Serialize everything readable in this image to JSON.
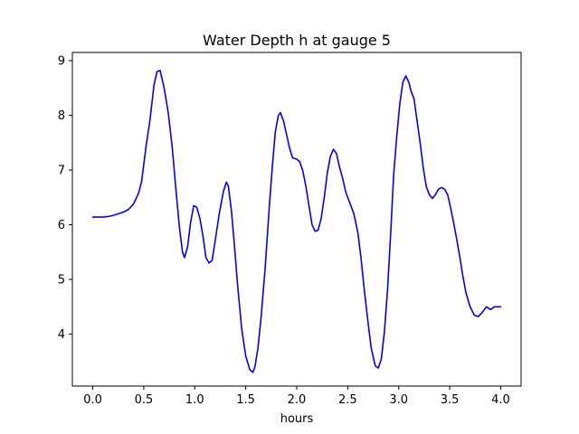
{
  "chart_data": {
    "type": "line",
    "title": "Water Depth h at gauge 5",
    "xlabel": "hours",
    "ylabel": "",
    "xlim": [
      -0.2,
      4.2
    ],
    "ylim": [
      3.05,
      9.15
    ],
    "xticks": [
      0.0,
      0.5,
      1.0,
      1.5,
      2.0,
      2.5,
      3.0,
      3.5,
      4.0
    ],
    "xtick_labels": [
      "0.0",
      "0.5",
      "1.0",
      "1.5",
      "2.0",
      "2.5",
      "3.0",
      "3.5",
      "4.0"
    ],
    "yticks": [
      4,
      5,
      6,
      7,
      8,
      9
    ],
    "ytick_labels": [
      "4",
      "5",
      "6",
      "7",
      "8",
      "9"
    ],
    "grid": false,
    "legend": "none",
    "series": [
      {
        "color": "#0000ff",
        "x": [
          0.0,
          0.1,
          0.15,
          0.2,
          0.25,
          0.3,
          0.35,
          0.4,
          0.45,
          0.48,
          0.52,
          0.56,
          0.6,
          0.63,
          0.66,
          0.7,
          0.74,
          0.78,
          0.82,
          0.85,
          0.88,
          0.9,
          0.93,
          0.96,
          0.99,
          1.02,
          1.05,
          1.08,
          1.11,
          1.14,
          1.17,
          1.2,
          1.24,
          1.28,
          1.31,
          1.33,
          1.36,
          1.39,
          1.42,
          1.46,
          1.5,
          1.54,
          1.57,
          1.59,
          1.62,
          1.65,
          1.69,
          1.73,
          1.76,
          1.79,
          1.82,
          1.84,
          1.87,
          1.9,
          1.93,
          1.96,
          2.0,
          2.03,
          2.06,
          2.09,
          2.12,
          2.15,
          2.18,
          2.21,
          2.24,
          2.27,
          2.3,
          2.33,
          2.36,
          2.39,
          2.42,
          2.45,
          2.48,
          2.52,
          2.56,
          2.6,
          2.63,
          2.66,
          2.7,
          2.73,
          2.77,
          2.8,
          2.83,
          2.86,
          2.89,
          2.92,
          2.95,
          2.98,
          3.01,
          3.04,
          3.07,
          3.1,
          3.12,
          3.15,
          3.18,
          3.21,
          3.24,
          3.27,
          3.3,
          3.33,
          3.36,
          3.39,
          3.42,
          3.45,
          3.48,
          3.51,
          3.54,
          3.57,
          3.6,
          3.63,
          3.66,
          3.7,
          3.74,
          3.78,
          3.82,
          3.86,
          3.9,
          3.94,
          3.97,
          4.0
        ],
        "y": [
          6.14,
          6.14,
          6.15,
          6.17,
          6.2,
          6.23,
          6.28,
          6.38,
          6.58,
          6.8,
          7.4,
          7.9,
          8.55,
          8.8,
          8.82,
          8.5,
          8.05,
          7.4,
          6.55,
          5.95,
          5.5,
          5.4,
          5.6,
          6.05,
          6.35,
          6.32,
          6.12,
          5.8,
          5.4,
          5.3,
          5.35,
          5.7,
          6.2,
          6.6,
          6.78,
          6.7,
          6.25,
          5.6,
          4.9,
          4.1,
          3.6,
          3.35,
          3.3,
          3.4,
          3.75,
          4.3,
          5.2,
          6.3,
          7.05,
          7.7,
          8.0,
          8.05,
          7.9,
          7.65,
          7.4,
          7.22,
          7.2,
          7.15,
          6.98,
          6.7,
          6.35,
          6.0,
          5.88,
          5.9,
          6.12,
          6.5,
          6.95,
          7.25,
          7.38,
          7.3,
          7.05,
          6.85,
          6.6,
          6.4,
          6.2,
          5.85,
          5.4,
          4.85,
          4.2,
          3.75,
          3.42,
          3.38,
          3.55,
          4.05,
          4.8,
          5.8,
          6.9,
          7.6,
          8.2,
          8.6,
          8.72,
          8.6,
          8.45,
          8.3,
          7.9,
          7.5,
          7.05,
          6.7,
          6.55,
          6.48,
          6.55,
          6.65,
          6.68,
          6.65,
          6.55,
          6.3,
          6.02,
          5.72,
          5.4,
          5.05,
          4.75,
          4.5,
          4.35,
          4.32,
          4.4,
          4.5,
          4.45,
          4.5,
          4.5,
          4.5
        ]
      }
    ]
  }
}
